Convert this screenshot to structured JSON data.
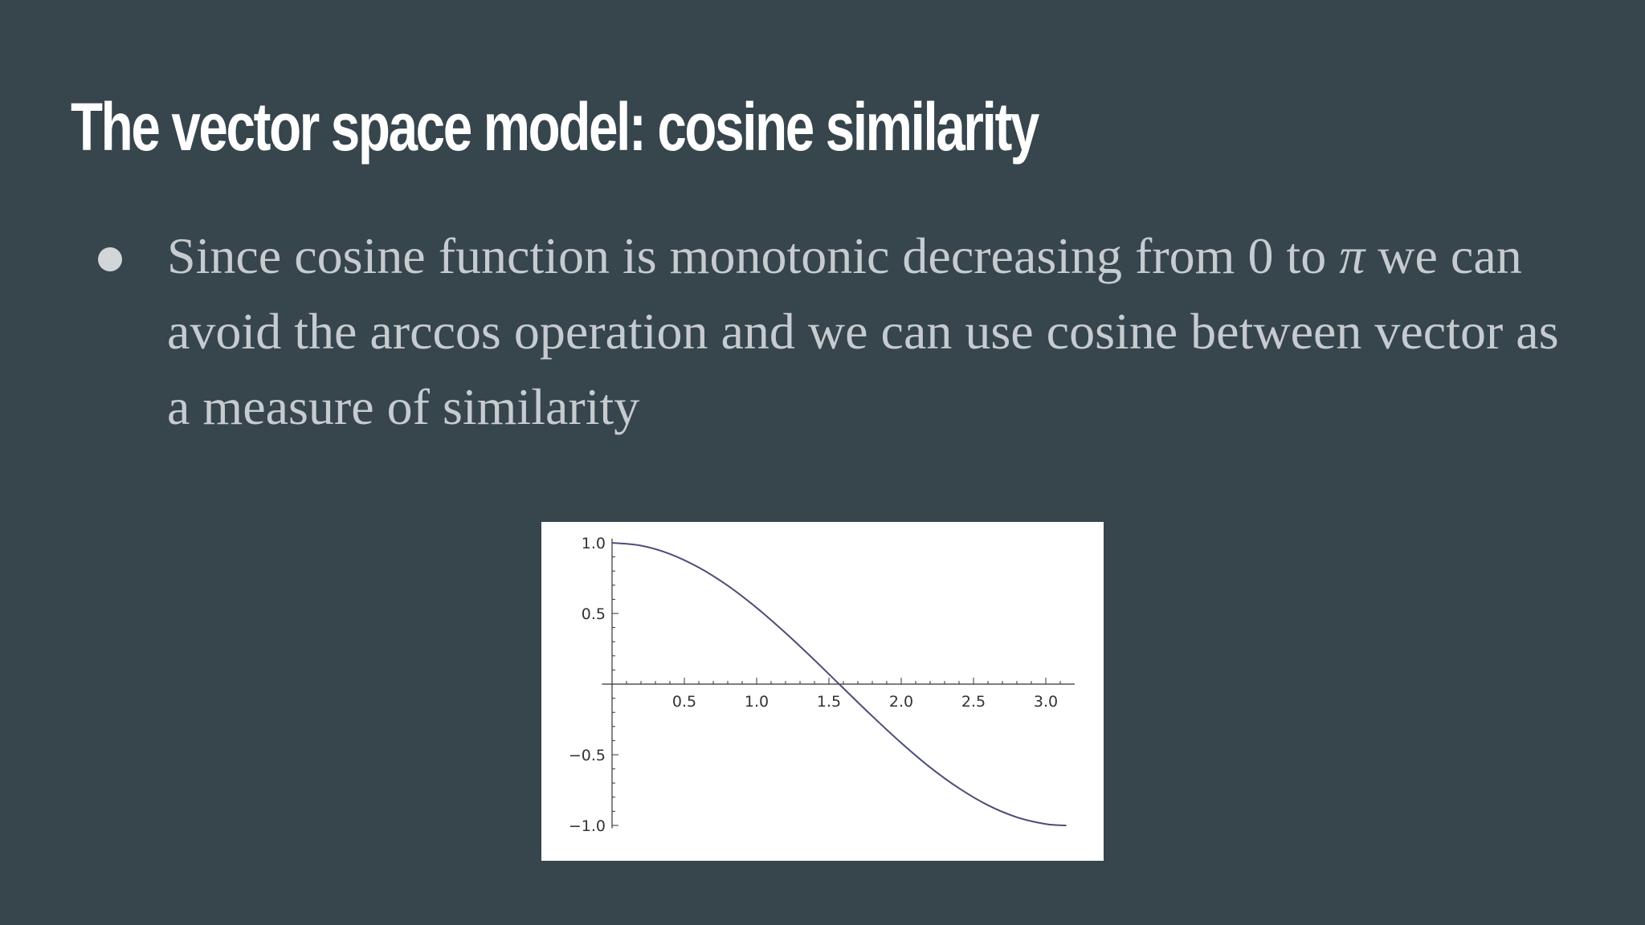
{
  "slide": {
    "title": "The vector space model: cosine similarity",
    "bullet": {
      "text_before_pi": "Since cosine function is monotonic decreasing from 0 to ",
      "pi_symbol": "π",
      "text_after_pi": " we can avoid the arccos operation and we can use cosine between vector as a measure of similarity"
    }
  },
  "colors": {
    "background": "#37454d",
    "title": "#ffffff",
    "body_text": "#c6cbcf",
    "curve": "#4b4d78"
  },
  "chart_data": {
    "type": "line",
    "title": "",
    "xlabel": "",
    "ylabel": "",
    "xlim": [
      0,
      3.2
    ],
    "ylim": [
      -1.05,
      1.05
    ],
    "grid": false,
    "x_ticks": [
      0.5,
      1.0,
      1.5,
      2.0,
      2.5,
      3.0
    ],
    "x_tick_labels": [
      "0.5",
      "1.0",
      "1.5",
      "2.0",
      "2.5",
      "3.0"
    ],
    "y_ticks": [
      1.0,
      0.5,
      -0.5,
      -1.0
    ],
    "y_tick_labels": [
      "1.0",
      "0.5",
      "−0.5",
      "−1.0"
    ],
    "series": [
      {
        "x": [
          0.0,
          0.2,
          0.4,
          0.6,
          0.8,
          1.0,
          1.2,
          1.4,
          1.5708,
          1.8,
          2.0,
          2.2,
          2.4,
          2.6,
          2.8,
          3.0,
          3.1416
        ],
        "y": [
          1.0,
          0.98,
          0.921,
          0.825,
          0.697,
          0.54,
          0.362,
          0.17,
          0.0,
          -0.227,
          -0.416,
          -0.589,
          -0.737,
          -0.857,
          -0.942,
          -0.99,
          -1.0
        ]
      }
    ]
  }
}
